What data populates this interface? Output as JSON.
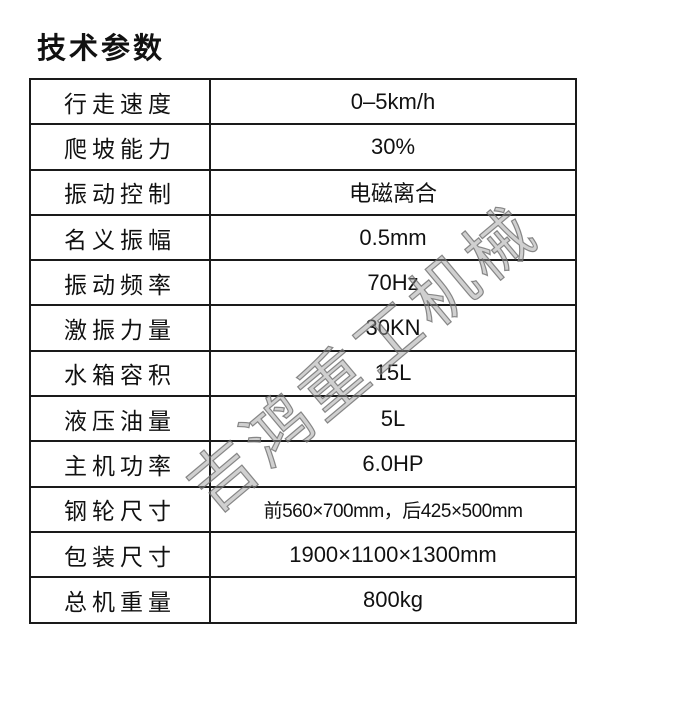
{
  "title": "技术参数",
  "rows": [
    {
      "label": "行走速度",
      "value": "0–5km/h"
    },
    {
      "label": "爬坡能力",
      "value": "30%"
    },
    {
      "label": "振动控制",
      "value": "电磁离合"
    },
    {
      "label": "名义振幅",
      "value": "0.5mm"
    },
    {
      "label": "振动频率",
      "value": "70Hz"
    },
    {
      "label": "激振力量",
      "value": "30KN"
    },
    {
      "label": "水箱容积",
      "value": "15L"
    },
    {
      "label": "液压油量",
      "value": "5L"
    },
    {
      "label": "主机功率",
      "value": "6.0HP"
    },
    {
      "label": "钢轮尺寸",
      "value": "前560×700mm，后425×500mm"
    },
    {
      "label": "包装尺寸",
      "value": "1900×1100×1300mm"
    },
    {
      "label": "总机重量",
      "value": "800kg"
    }
  ],
  "watermark": "吉鸿重工机械"
}
